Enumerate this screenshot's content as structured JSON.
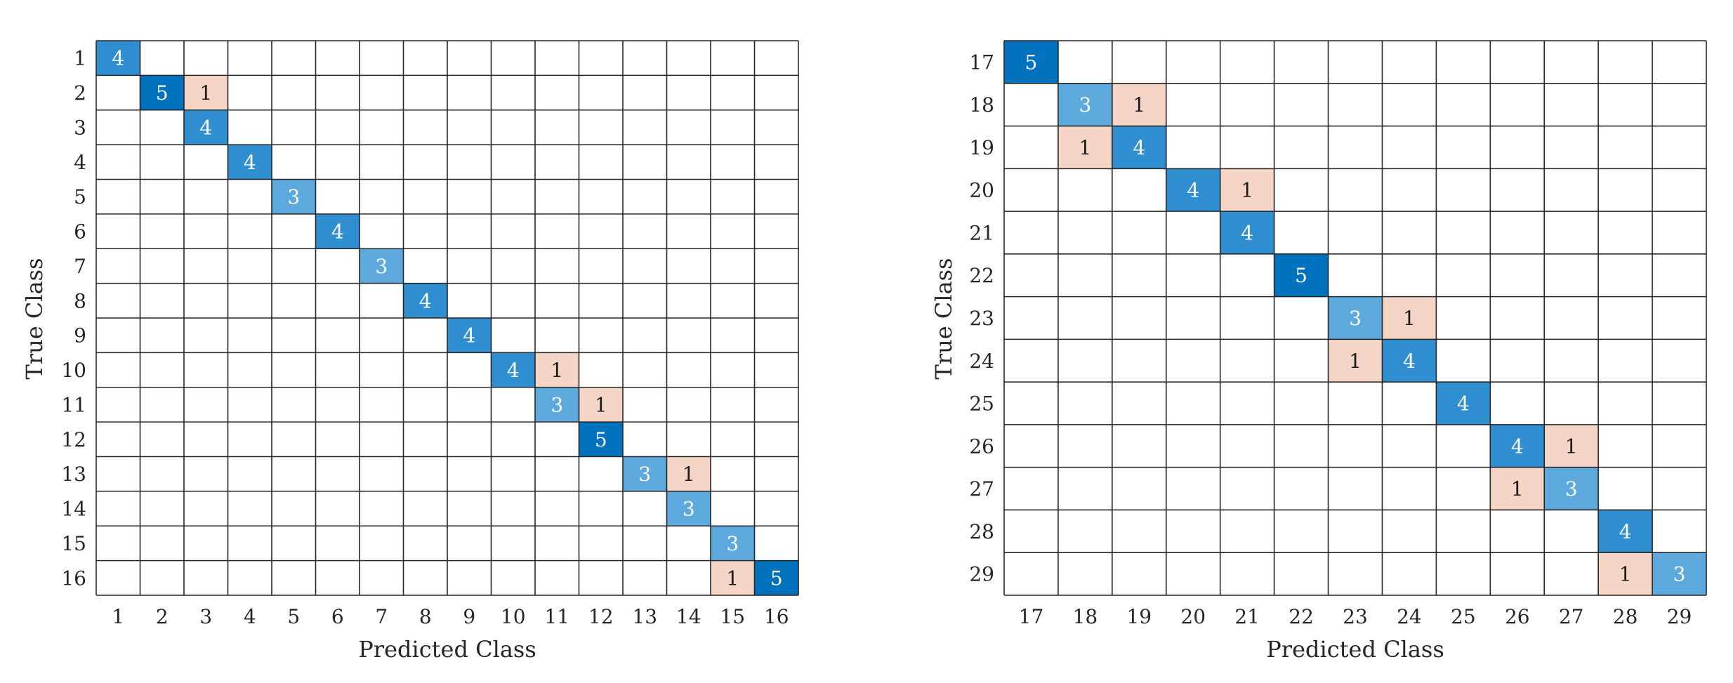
{
  "colors": {
    "diag_5": "#0072bd",
    "diag_4": "#2f8fd1",
    "diag_3": "#5da9dd",
    "offdiag_1": "#f5d5c6",
    "text_on_dark": "#ffffff",
    "text_on_light": "#1a1a1a",
    "grid": "#262626"
  },
  "chart_data": [
    {
      "type": "heatmap",
      "subtype": "confusion-matrix",
      "xlabel": "Predicted Class",
      "ylabel": "True Class",
      "classes": [
        "1",
        "2",
        "3",
        "4",
        "5",
        "6",
        "7",
        "8",
        "9",
        "10",
        "11",
        "12",
        "13",
        "14",
        "15",
        "16"
      ],
      "cells": [
        {
          "true": "1",
          "pred": "1",
          "value": 4
        },
        {
          "true": "2",
          "pred": "2",
          "value": 5
        },
        {
          "true": "2",
          "pred": "3",
          "value": 1
        },
        {
          "true": "3",
          "pred": "3",
          "value": 4
        },
        {
          "true": "4",
          "pred": "4",
          "value": 4
        },
        {
          "true": "5",
          "pred": "5",
          "value": 3
        },
        {
          "true": "6",
          "pred": "6",
          "value": 4
        },
        {
          "true": "7",
          "pred": "7",
          "value": 3
        },
        {
          "true": "8",
          "pred": "8",
          "value": 4
        },
        {
          "true": "9",
          "pred": "9",
          "value": 4
        },
        {
          "true": "10",
          "pred": "10",
          "value": 4
        },
        {
          "true": "10",
          "pred": "11",
          "value": 1
        },
        {
          "true": "11",
          "pred": "11",
          "value": 3
        },
        {
          "true": "11",
          "pred": "12",
          "value": 1
        },
        {
          "true": "12",
          "pred": "12",
          "value": 5
        },
        {
          "true": "13",
          "pred": "13",
          "value": 3
        },
        {
          "true": "13",
          "pred": "14",
          "value": 1
        },
        {
          "true": "14",
          "pred": "14",
          "value": 3
        },
        {
          "true": "15",
          "pred": "15",
          "value": 3
        },
        {
          "true": "16",
          "pred": "15",
          "value": 1
        },
        {
          "true": "16",
          "pred": "16",
          "value": 5
        }
      ]
    },
    {
      "type": "heatmap",
      "subtype": "confusion-matrix",
      "xlabel": "Predicted Class",
      "ylabel": "True Class",
      "classes": [
        "17",
        "18",
        "19",
        "20",
        "21",
        "22",
        "23",
        "24",
        "25",
        "26",
        "27",
        "28",
        "29"
      ],
      "cells": [
        {
          "true": "17",
          "pred": "17",
          "value": 5
        },
        {
          "true": "18",
          "pred": "18",
          "value": 3
        },
        {
          "true": "18",
          "pred": "19",
          "value": 1
        },
        {
          "true": "19",
          "pred": "18",
          "value": 1
        },
        {
          "true": "19",
          "pred": "19",
          "value": 4
        },
        {
          "true": "20",
          "pred": "20",
          "value": 4
        },
        {
          "true": "20",
          "pred": "21",
          "value": 1
        },
        {
          "true": "21",
          "pred": "21",
          "value": 4
        },
        {
          "true": "22",
          "pred": "22",
          "value": 5
        },
        {
          "true": "23",
          "pred": "23",
          "value": 3
        },
        {
          "true": "23",
          "pred": "24",
          "value": 1
        },
        {
          "true": "24",
          "pred": "23",
          "value": 1
        },
        {
          "true": "24",
          "pred": "24",
          "value": 4
        },
        {
          "true": "25",
          "pred": "25",
          "value": 4
        },
        {
          "true": "26",
          "pred": "26",
          "value": 4
        },
        {
          "true": "26",
          "pred": "27",
          "value": 1
        },
        {
          "true": "27",
          "pred": "26",
          "value": 1
        },
        {
          "true": "27",
          "pred": "27",
          "value": 3
        },
        {
          "true": "28",
          "pred": "28",
          "value": 4
        },
        {
          "true": "29",
          "pred": "28",
          "value": 1
        },
        {
          "true": "29",
          "pred": "29",
          "value": 3
        }
      ]
    }
  ]
}
